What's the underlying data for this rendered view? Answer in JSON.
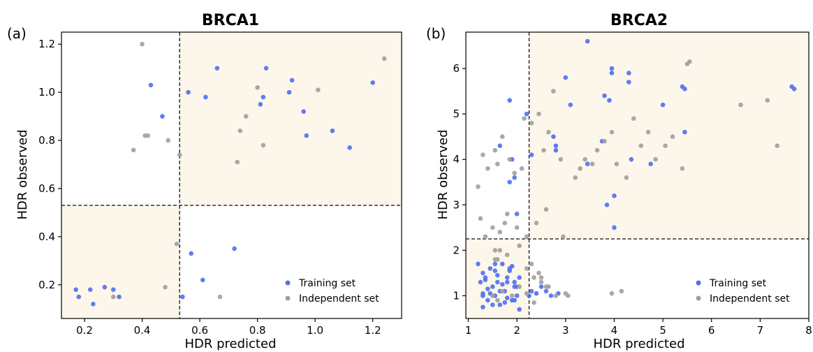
{
  "chart_data": [
    {
      "type": "scatter",
      "panel_label": "(a)",
      "title": "BRCA1",
      "xlabel": "HDR predicted",
      "ylabel": "HDR observed",
      "xlim": [
        0.12,
        1.3
      ],
      "ylim": [
        0.06,
        1.25
      ],
      "xticks": [
        0.2,
        0.4,
        0.6,
        0.8,
        1.0,
        1.2
      ],
      "xtick_labels": [
        "0.2",
        "0.4",
        "0.6",
        "0.8",
        "1.0",
        "1.2"
      ],
      "yticks": [
        0.2,
        0.4,
        0.6,
        0.8,
        1.0,
        1.2
      ],
      "ytick_labels": [
        "0.2",
        "0.4",
        "0.6",
        "0.8",
        "1.0",
        "1.2"
      ],
      "threshold_x": 0.53,
      "threshold_y": 0.53,
      "grid": false,
      "legend_position": "bottom-right",
      "series": [
        {
          "name": "Training set",
          "color": "#4f6ff0",
          "x": [
            0.17,
            0.18,
            0.22,
            0.23,
            0.27,
            0.3,
            0.32,
            0.43,
            0.47,
            0.54,
            0.56,
            0.57,
            0.61,
            0.62,
            0.66,
            0.72,
            0.81,
            0.82,
            0.83,
            0.91,
            0.92,
            0.96,
            0.97,
            1.06,
            1.12,
            1.2
          ],
          "y": [
            0.18,
            0.15,
            0.18,
            0.12,
            0.19,
            0.18,
            0.15,
            1.03,
            0.9,
            0.15,
            1.0,
            0.33,
            0.22,
            0.98,
            1.1,
            0.35,
            0.95,
            0.98,
            1.1,
            1.0,
            1.05,
            0.92,
            0.82,
            0.84,
            0.77,
            1.04
          ]
        },
        {
          "name": "Independent set",
          "color": "#a0a0a0",
          "x": [
            0.3,
            0.37,
            0.4,
            0.41,
            0.42,
            0.48,
            0.49,
            0.52,
            0.53,
            0.67,
            0.73,
            0.74,
            0.76,
            0.8,
            0.82,
            1.01,
            1.24
          ],
          "y": [
            0.15,
            0.76,
            1.2,
            0.82,
            0.82,
            0.19,
            0.8,
            0.37,
            0.74,
            0.15,
            0.71,
            0.84,
            0.9,
            1.02,
            0.78,
            1.01,
            1.14
          ]
        }
      ]
    },
    {
      "type": "scatter",
      "panel_label": "(b)",
      "title": "BRCA2",
      "xlabel": "HDR predicted",
      "ylabel": "HDR observed",
      "xlim": [
        0.95,
        8.0
      ],
      "ylim": [
        0.5,
        6.8
      ],
      "xticks": [
        1,
        2,
        3,
        4,
        5,
        6,
        7,
        8
      ],
      "xtick_labels": [
        "1",
        "2",
        "3",
        "4",
        "5",
        "6",
        "7",
        "8"
      ],
      "yticks": [
        1,
        2,
        3,
        4,
        5,
        6
      ],
      "ytick_labels": [
        "1",
        "2",
        "3",
        "4",
        "5",
        "6"
      ],
      "threshold_x": 2.25,
      "threshold_y": 2.25,
      "grid": false,
      "legend_position": "bottom-right",
      "series": [
        {
          "name": "Training set",
          "color": "#4f6ff0",
          "x": [
            1.2,
            1.25,
            1.3,
            1.3,
            1.35,
            1.4,
            1.45,
            1.5,
            1.55,
            1.6,
            1.65,
            1.7,
            1.75,
            1.8,
            1.85,
            1.9,
            1.95,
            2.0,
            2.05,
            1.3,
            1.45,
            1.55,
            1.7,
            1.8,
            1.95,
            2.05,
            1.4,
            1.6,
            1.75,
            1.9,
            1.35,
            1.5,
            1.65,
            1.85,
            2.0,
            1.3,
            1.55,
            1.8,
            1.95,
            2.25,
            2.3,
            2.4,
            2.5,
            2.6,
            2.7,
            2.85,
            2.0,
            1.65,
            1.85,
            1.9,
            1.95,
            1.85,
            2.2,
            2.3,
            2.75,
            2.8,
            2.8,
            3.0,
            3.1,
            3.45,
            3.45,
            3.75,
            3.8,
            3.85,
            3.9,
            3.95,
            3.95,
            4.0,
            4.0,
            4.3,
            4.3,
            4.35,
            5.0,
            4.75,
            5.4,
            5.45,
            5.45,
            7.65,
            7.7
          ],
          "y": [
            1.7,
            1.3,
            1.0,
            1.5,
            1.4,
            0.9,
            1.6,
            1.2,
            1.0,
            1.3,
            0.8,
            1.7,
            1.1,
            1.4,
            1.6,
            0.9,
            1.2,
            1.0,
            1.4,
            0.75,
            1.05,
            1.55,
            1.25,
            0.95,
            1.3,
            0.7,
            1.15,
            1.45,
            0.85,
            1.65,
            1.35,
            0.8,
            1.1,
            1.55,
            1.2,
            1.05,
            1.7,
            1.3,
            0.9,
            1.0,
            1.1,
            1.05,
            1.2,
            1.1,
            1.0,
            1.05,
            2.8,
            4.3,
            5.3,
            4.0,
            3.6,
            3.5,
            5.0,
            4.1,
            4.5,
            4.2,
            4.3,
            5.8,
            5.2,
            6.6,
            3.9,
            4.4,
            5.4,
            3.0,
            5.3,
            6.0,
            5.9,
            3.2,
            2.5,
            5.9,
            5.7,
            4.0,
            5.2,
            3.9,
            5.6,
            5.55,
            4.6,
            5.6,
            5.55
          ]
        },
        {
          "name": "Independent set",
          "color": "#a0a0a0",
          "x": [
            1.2,
            1.3,
            1.4,
            1.55,
            1.6,
            1.7,
            1.85,
            1.95,
            2.1,
            2.15,
            2.3,
            2.45,
            2.55,
            2.65,
            2.75,
            2.9,
            1.25,
            1.35,
            1.5,
            1.65,
            1.75,
            1.8,
            2.0,
            2.2,
            2.4,
            2.6,
            1.5,
            1.6,
            1.7,
            1.9,
            2.05,
            2.2,
            2.35,
            2.5,
            1.55,
            1.65,
            1.8,
            2.05,
            2.3,
            2.45,
            2.5,
            2.65,
            2.8,
            2.95,
            3.0,
            3.2,
            3.3,
            3.4,
            3.55,
            3.65,
            3.8,
            3.95,
            4.05,
            4.25,
            4.4,
            4.55,
            4.7,
            4.85,
            5.05,
            5.2,
            5.4,
            5.5,
            5.55,
            6.6,
            7.15,
            7.35,
            4.15,
            3.95,
            3.05,
            1.55,
            1.6,
            2.2,
            2.35,
            2.6
          ],
          "y": [
            3.4,
            4.1,
            3.8,
            4.2,
            3.9,
            4.5,
            4.0,
            3.7,
            3.8,
            4.9,
            4.8,
            5.0,
            4.2,
            4.6,
            5.5,
            4.0,
            2.7,
            2.3,
            2.5,
            2.4,
            2.6,
            2.8,
            2.5,
            2.3,
            2.6,
            2.9,
            1.0,
            0.9,
            1.1,
            1.0,
            1.2,
            1.05,
            0.85,
            1.3,
            1.8,
            2.0,
            1.9,
            2.1,
            1.7,
            1.5,
            1.4,
            1.2,
            1.0,
            2.3,
            1.05,
            3.6,
            3.8,
            4.0,
            3.9,
            4.2,
            4.4,
            4.6,
            3.9,
            3.6,
            4.9,
            4.3,
            4.6,
            4.0,
            4.3,
            4.5,
            3.8,
            6.1,
            6.15,
            5.2,
            5.3,
            4.3,
            1.1,
            1.05,
            1.0,
            2.0,
            1.8,
            1.6,
            1.4,
            1.2
          ]
        }
      ]
    }
  ]
}
